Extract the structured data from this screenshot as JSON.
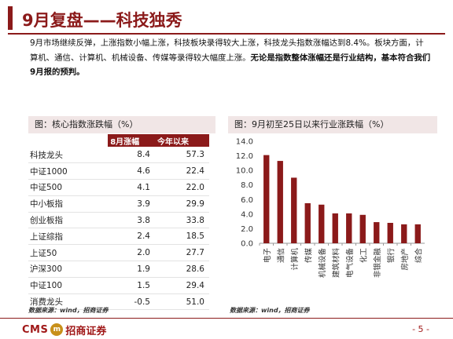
{
  "slide": {
    "title": "9月复盘——科技独秀",
    "summary_plain": "9月市场继续反弹，上涨指数小幅上涨，科技板块录得较大上涨，科技龙头指数涨幅达到8.4%。板块方面，计算机、通信、计算机、机械设备、传媒等录得较大幅度上涨。",
    "summary_bold": "无论是指数整体涨幅还是行业结构，基本符合我们9月报的预判。"
  },
  "table_panel": {
    "title": "图：核心指数涨跌幅（%）",
    "headers": [
      "",
      "8月涨幅",
      "今年以来"
    ],
    "rows": [
      {
        "name": "科技龙头",
        "aug": "8.4",
        "ytd": "57.3"
      },
      {
        "name": "中证1000",
        "aug": "4.6",
        "ytd": "22.4"
      },
      {
        "name": "中证500",
        "aug": "4.1",
        "ytd": "22.0"
      },
      {
        "name": "中小板指",
        "aug": "3.9",
        "ytd": "29.9"
      },
      {
        "name": "创业板指",
        "aug": "3.8",
        "ytd": "33.8"
      },
      {
        "name": "上证综指",
        "aug": "2.4",
        "ytd": "18.5"
      },
      {
        "name": "上证50",
        "aug": "2.0",
        "ytd": "27.7"
      },
      {
        "name": "沪深300",
        "aug": "1.9",
        "ytd": "28.6"
      },
      {
        "name": "中证100",
        "aug": "1.5",
        "ytd": "29.4"
      },
      {
        "name": "消费龙头",
        "aug": "-0.5",
        "ytd": "51.0"
      }
    ],
    "source": "数据来源：wind，招商证券"
  },
  "chart_panel": {
    "title": "图：9月初至25日以来行业涨跌幅（%）",
    "source": "数据来源：wind，招商证券"
  },
  "chart_data": {
    "type": "bar",
    "categories": [
      "电子",
      "通信",
      "计算机",
      "传媒",
      "机械设备",
      "建筑材料",
      "电气设备",
      "化工",
      "非银金融",
      "银行",
      "房地产",
      "综合"
    ],
    "values": [
      12.1,
      11.3,
      9.0,
      5.5,
      5.3,
      4.1,
      4.1,
      3.9,
      2.9,
      2.8,
      2.6,
      2.6
    ],
    "ylim": [
      0,
      14
    ],
    "yticks": [
      "0.0",
      "2.0",
      "4.0",
      "6.0",
      "8.0",
      "10.0",
      "12.0",
      "14.0"
    ],
    "bar_color": "#8b1a1a",
    "grid": false,
    "legend": "none"
  },
  "footer": {
    "logo_cms": "CMS",
    "logo_mark": "m",
    "logo_cn": "招商证券",
    "page_number": "- 5 -"
  }
}
